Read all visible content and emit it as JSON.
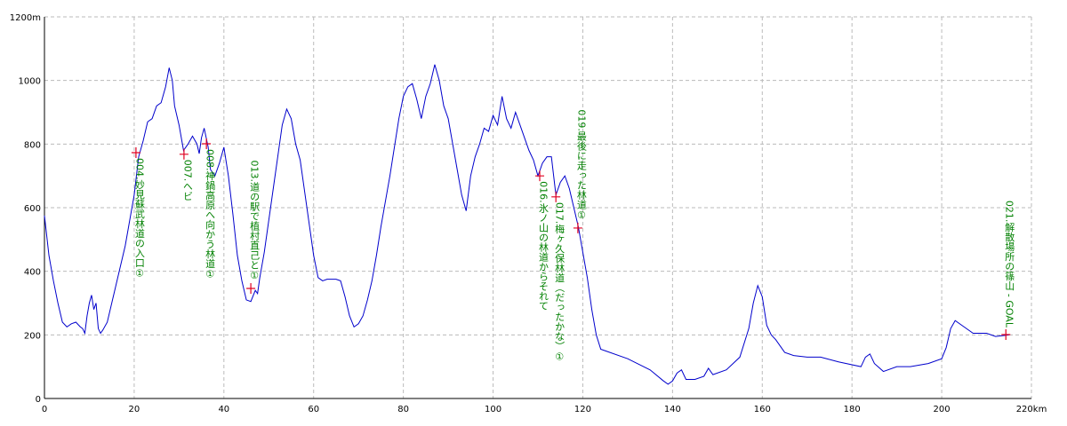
{
  "chart_data": {
    "type": "line",
    "x": [
      0,
      1,
      2,
      3,
      4,
      5,
      6,
      7,
      8,
      8.5,
      9,
      9.5,
      10,
      10.5,
      11,
      11.5,
      12,
      12.5,
      13,
      14,
      15,
      16,
      17,
      18,
      19,
      20,
      21,
      22,
      23,
      24,
      25,
      26,
      27,
      27.8,
      28.5,
      29,
      30,
      31,
      32,
      33,
      34,
      34.5,
      35,
      35.6,
      36.5,
      37,
      38,
      39,
      40,
      41,
      42,
      43,
      44,
      45,
      46,
      47,
      47.5,
      48,
      49,
      50,
      51,
      52,
      53,
      54,
      55,
      56,
      57,
      58,
      59,
      60,
      61,
      62,
      63,
      64,
      65,
      66,
      67,
      68,
      69,
      70,
      71,
      72,
      73,
      74,
      75,
      76,
      77,
      78,
      79,
      80,
      81,
      82,
      83,
      84,
      85,
      86,
      87,
      88,
      89,
      90,
      91,
      92,
      93,
      94,
      95,
      96,
      97,
      98,
      99,
      100,
      101,
      102,
      103,
      104,
      105,
      106,
      107,
      108,
      109,
      110,
      111,
      112,
      113,
      113.5,
      114,
      115,
      116,
      117,
      118,
      119,
      120,
      121,
      122,
      123,
      124,
      125,
      130,
      135,
      138,
      139,
      140,
      141,
      142,
      143,
      145,
      147,
      148,
      149,
      152,
      155,
      157,
      158,
      159,
      160,
      161,
      162,
      163,
      165,
      167,
      170,
      173,
      177,
      182,
      183,
      184,
      185,
      187,
      190,
      193,
      197,
      200,
      201,
      202,
      203,
      205,
      207,
      210,
      212,
      215
    ],
    "series": [
      {
        "color": "#0000cc",
        "values": [
          575,
          450,
          370,
          300,
          240,
          225,
          235,
          240,
          225,
          220,
          205,
          260,
          300,
          325,
          280,
          300,
          220,
          205,
          215,
          240,
          300,
          360,
          420,
          480,
          560,
          640,
          760,
          810,
          870,
          880,
          920,
          930,
          980,
          1040,
          1000,
          920,
          860,
          780,
          800,
          825,
          800,
          770,
          820,
          850,
          790,
          720,
          700,
          740,
          790,
          700,
          580,
          450,
          370,
          310,
          305,
          340,
          330,
          380,
          460,
          560,
          660,
          760,
          860,
          910,
          880,
          800,
          750,
          650,
          550,
          450,
          380,
          370,
          375,
          375,
          375,
          370,
          320,
          260,
          225,
          235,
          260,
          310,
          370,
          450,
          540,
          620,
          700,
          790,
          880,
          950,
          980,
          990,
          940,
          880,
          950,
          990,
          1050,
          1000,
          920,
          880,
          800,
          720,
          640,
          590,
          700,
          760,
          800,
          850,
          840,
          890,
          860,
          950,
          880,
          850,
          900,
          860,
          820,
          780,
          750,
          700,
          740,
          760,
          760,
          700,
          640,
          680,
          700,
          660,
          600,
          540,
          460,
          380,
          280,
          200,
          155,
          150,
          125,
          90,
          55,
          45,
          55,
          80,
          90,
          60,
          60,
          70,
          95,
          75,
          90,
          130,
          220,
          300,
          355,
          320,
          230,
          200,
          185,
          145,
          135,
          130,
          130,
          115,
          100,
          130,
          140,
          110,
          85,
          100,
          100,
          110,
          125,
          160,
          220,
          245,
          225,
          205,
          205,
          195,
          200
        ]
      }
    ],
    "waypoints": [
      {
        "x": 20.4,
        "y": 773,
        "label": "004.妙見蘇武林道の入口①"
      },
      {
        "x": 31.1,
        "y": 768,
        "label": "007.ヘビ"
      },
      {
        "x": 36.1,
        "y": 801,
        "label": "008.神鍋高原へ向かう林道①"
      },
      {
        "x": 46,
        "y": 346,
        "label": "013.道の駅で植村直己と①"
      },
      {
        "x": 110.4,
        "y": 700,
        "label": "016.氷ノ山の林道からそれて"
      },
      {
        "x": 114,
        "y": 634,
        "label": "017.梅ヶ久保林道（だったかな）①"
      },
      {
        "x": 118.9,
        "y": 536,
        "label": "019.最後に走った林道①"
      },
      {
        "x": 214.3,
        "y": 201,
        "label": "021.解散場所の篠山 - GOAL"
      }
    ],
    "xlim": [
      0,
      220
    ],
    "xticks": [
      0,
      20,
      40,
      60,
      80,
      100,
      120,
      140,
      160,
      180,
      200,
      {
        "value": 220,
        "label": "220km"
      }
    ],
    "ylim": [
      0,
      1200
    ],
    "yticks": [
      0,
      200,
      400,
      600,
      800,
      1000,
      {
        "value": 1200,
        "label": "1200m"
      }
    ],
    "grid": true
  }
}
